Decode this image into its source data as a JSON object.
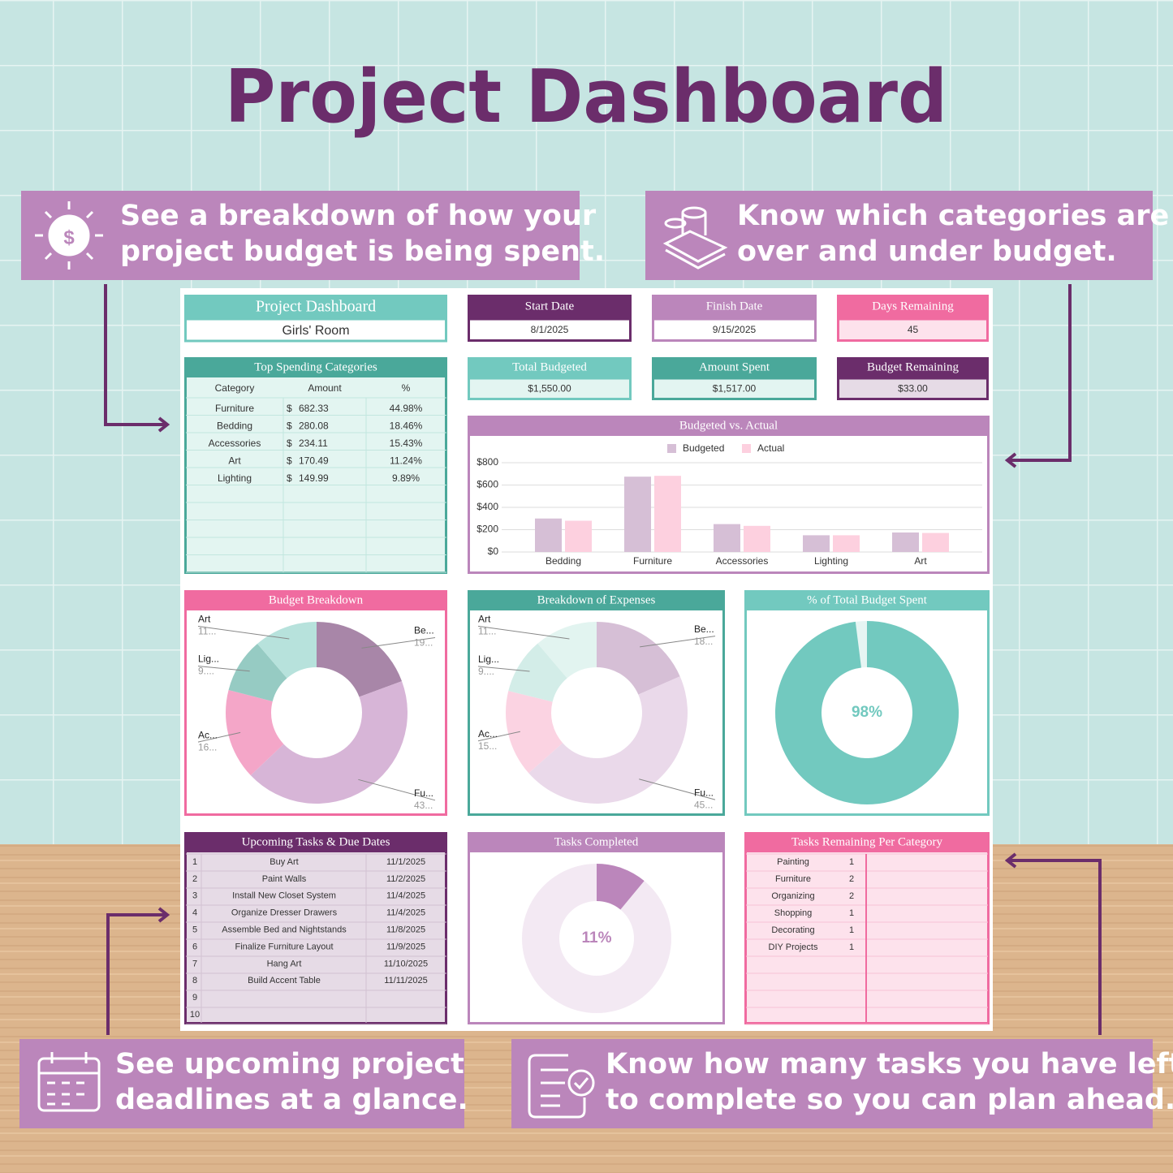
{
  "header": {
    "title": "Project Dashboard"
  },
  "callouts": [
    {
      "lines": [
        "See a breakdown of how your",
        "project budget is being spent."
      ]
    },
    {
      "lines": [
        "Know which categories are",
        "over and under budget."
      ]
    },
    {
      "lines": [
        "See upcoming project",
        "deadlines at a glance."
      ]
    },
    {
      "lines": [
        "Know how many tasks you have left",
        "to complete so you can plan ahead."
      ]
    }
  ],
  "dashboard": {
    "title": "Project Dashboard",
    "project": "Girls' Room",
    "stats": [
      {
        "label": "Start Date",
        "value": "8/1/2025"
      },
      {
        "label": "Finish Date",
        "value": "9/15/2025"
      },
      {
        "label": "Days Remaining",
        "value": "45"
      },
      {
        "label": "Total Budgeted",
        "value": "$1,550.00"
      },
      {
        "label": "Amount Spent",
        "value": "$1,517.00"
      },
      {
        "label": "Budget Remaining",
        "value": "$33.00"
      }
    ],
    "top_spending": {
      "title": "Top Spending Categories",
      "columns": [
        "Category",
        "Amount",
        "%"
      ],
      "rows": [
        [
          "Furniture",
          "$",
          "682.33",
          "44.98%"
        ],
        [
          "Bedding",
          "$",
          "280.08",
          "18.46%"
        ],
        [
          "Accessories",
          "$",
          "234.11",
          "15.43%"
        ],
        [
          "Art",
          "$",
          "170.49",
          "11.24%"
        ],
        [
          "Lighting",
          "$",
          "149.99",
          "9.89%"
        ]
      ]
    },
    "tasks": {
      "title": "Upcoming Tasks & Due Dates",
      "rows": [
        [
          "1",
          "Buy Art",
          "11/1/2025"
        ],
        [
          "2",
          "Paint Walls",
          "11/2/2025"
        ],
        [
          "3",
          "Install New Closet System",
          "11/4/2025"
        ],
        [
          "4",
          "Organize Dresser Drawers",
          "11/4/2025"
        ],
        [
          "5",
          "Assemble Bed and Nightstands",
          "11/8/2025"
        ],
        [
          "6",
          "Finalize Furniture Layout",
          "11/9/2025"
        ],
        [
          "7",
          "Hang Art",
          "11/10/2025"
        ],
        [
          "8",
          "Build Accent Table",
          "11/11/2025"
        ],
        [
          "9"
        ],
        [
          "10"
        ]
      ]
    },
    "tasks_remaining": {
      "title": "Tasks Remaining Per Category",
      "rows": [
        [
          "Painting",
          "1"
        ],
        [
          "Furniture",
          "2"
        ],
        [
          "Organizing",
          "2"
        ],
        [
          "Shopping",
          "1"
        ],
        [
          "Decorating",
          "1"
        ],
        [
          "DIY Projects",
          "1"
        ]
      ]
    }
  },
  "chart_data": [
    {
      "type": "bar",
      "title": "Budgeted vs. Actual",
      "categories": [
        "Bedding",
        "Furniture",
        "Accessories",
        "Lighting",
        "Art"
      ],
      "series": [
        {
          "name": "Budgeted",
          "color": "#d6bfd6",
          "values": [
            300,
            675,
            250,
            150,
            175
          ]
        },
        {
          "name": "Actual",
          "color": "#fdd0df",
          "values": [
            280.08,
            682.33,
            234.11,
            149.99,
            170.49
          ]
        }
      ],
      "ylim": [
        0,
        800
      ],
      "yticks": [
        {
          "value": 0,
          "label": "$0"
        },
        {
          "value": 200,
          "label": "$200"
        },
        {
          "value": 400,
          "label": "$400"
        },
        {
          "value": 600,
          "label": "$600"
        },
        {
          "value": 800,
          "label": "$800"
        }
      ],
      "grid": true,
      "legend": "top"
    },
    {
      "type": "pie",
      "title": "Budget Breakdown",
      "categories": [
        "Be...",
        "Fu...",
        "Ac...",
        "Lig...",
        "Art"
      ],
      "values": [
        19.35,
        43.55,
        16.13,
        9.68,
        11.29
      ],
      "value_labels": [
        "19...",
        "43...",
        "16...",
        "9....",
        "11..."
      ],
      "colors": [
        "#a886a8",
        "#d7b5d7",
        "#f4a6c8",
        "#96cbc3",
        "#b7e2dc"
      ]
    },
    {
      "type": "pie",
      "title": "Breakdown of Expenses",
      "categories": [
        "Be...",
        "Fu...",
        "Ac...",
        "Lig...",
        "Art"
      ],
      "values": [
        18.46,
        44.98,
        15.43,
        9.89,
        11.24
      ],
      "value_labels": [
        "18...",
        "45...",
        "15...",
        "9....",
        "11..."
      ],
      "colors": [
        "#d6bfd6",
        "#ead9ea",
        "#fbd3e2",
        "#d3ede8",
        "#e2f4f0"
      ]
    },
    {
      "type": "gauge",
      "title": "% of Total Budget Spent",
      "value": 98,
      "value_label": "98%",
      "lim": [
        0,
        100
      ],
      "color": "#72c9bf"
    },
    {
      "type": "gauge",
      "title": "Tasks Completed",
      "value": 11,
      "value_label": "11%",
      "lim": [
        0,
        100
      ],
      "color": "#bb86bb"
    }
  ]
}
